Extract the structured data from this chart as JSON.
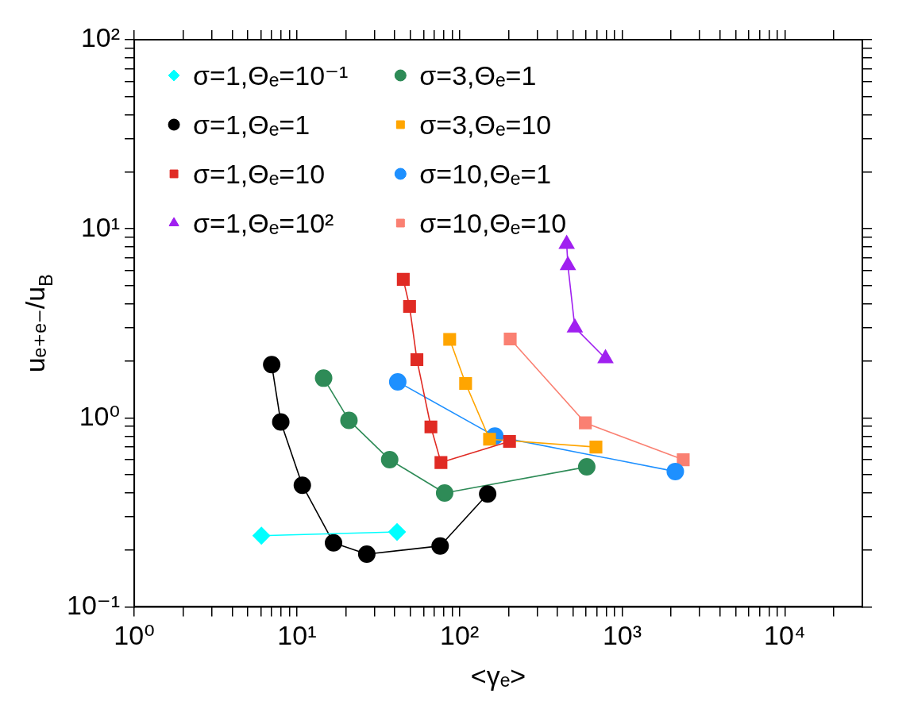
{
  "chart_data": {
    "type": "line",
    "xlabel": "<γₑ>",
    "ylabel": "uₑ₊ₑ₋/u$_{B}$",
    "log": "xy",
    "legend": "top",
    "grid": false,
    "xlim": [
      1,
      30000
    ],
    "xticks": [
      {
        "value": 1,
        "label": "10⁰"
      },
      {
        "value": 2,
        "label": null
      },
      {
        "value": 3,
        "label": null
      },
      {
        "value": 4,
        "label": null
      },
      {
        "value": 5,
        "label": null
      },
      {
        "value": 6,
        "label": null
      },
      {
        "value": 7,
        "label": null
      },
      {
        "value": 8,
        "label": null
      },
      {
        "value": 9,
        "label": null
      },
      {
        "value": 10,
        "label": "10¹"
      },
      {
        "value": 20,
        "label": null
      },
      {
        "value": 30,
        "label": null
      },
      {
        "value": 40,
        "label": null
      },
      {
        "value": 50,
        "label": null
      },
      {
        "value": 60,
        "label": null
      },
      {
        "value": 70,
        "label": null
      },
      {
        "value": 80,
        "label": null
      },
      {
        "value": 90,
        "label": null
      },
      {
        "value": 100,
        "label": "10²"
      },
      {
        "value": 200,
        "label": null
      },
      {
        "value": 300,
        "label": null
      },
      {
        "value": 400,
        "label": null
      },
      {
        "value": 500,
        "label": null
      },
      {
        "value": 600,
        "label": null
      },
      {
        "value": 700,
        "label": null
      },
      {
        "value": 800,
        "label": null
      },
      {
        "value": 900,
        "label": null
      },
      {
        "value": 1000,
        "label": "10³"
      },
      {
        "value": 2000,
        "label": null
      },
      {
        "value": 3000,
        "label": null
      },
      {
        "value": 4000,
        "label": null
      },
      {
        "value": 5000,
        "label": null
      },
      {
        "value": 6000,
        "label": null
      },
      {
        "value": 7000,
        "label": null
      },
      {
        "value": 8000,
        "label": null
      },
      {
        "value": 9000,
        "label": null
      },
      {
        "value": 10000,
        "label": "10⁴"
      },
      {
        "value": 20000,
        "label": null
      }
    ],
    "ylim": [
      0.1,
      100
    ],
    "yticks": [
      {
        "value": 0.1,
        "label": "10⁻¹"
      },
      {
        "value": 0.2,
        "label": null
      },
      {
        "value": 0.3,
        "label": null
      },
      {
        "value": 0.4,
        "label": null
      },
      {
        "value": 0.5,
        "label": null
      },
      {
        "value": 0.6,
        "label": null
      },
      {
        "value": 0.7,
        "label": null
      },
      {
        "value": 0.8,
        "label": null
      },
      {
        "value": 0.9,
        "label": null
      },
      {
        "value": 1,
        "label": "10⁰"
      },
      {
        "value": 2,
        "label": null
      },
      {
        "value": 3,
        "label": null
      },
      {
        "value": 4,
        "label": null
      },
      {
        "value": 5,
        "label": null
      },
      {
        "value": 6,
        "label": null
      },
      {
        "value": 7,
        "label": null
      },
      {
        "value": 8,
        "label": null
      },
      {
        "value": 9,
        "label": null
      },
      {
        "value": 10,
        "label": "10¹"
      },
      {
        "value": 20,
        "label": null
      },
      {
        "value": 30,
        "label": null
      },
      {
        "value": 40,
        "label": null
      },
      {
        "value": 50,
        "label": null
      },
      {
        "value": 60,
        "label": null
      },
      {
        "value": 70,
        "label": null
      },
      {
        "value": 80,
        "label": null
      },
      {
        "value": 90,
        "label": null
      },
      {
        "value": 100,
        "label": "10²"
      }
    ],
    "series": [
      {
        "name": "σ=1,Θₑ=10⁻¹",
        "color": "#00ffff",
        "marker": "diamond",
        "x": [
          6.05,
          41.3
        ],
        "values": [
          0.238,
          0.249
        ]
      },
      {
        "name": "σ=1,Θₑ=1",
        "color": "#000000",
        "marker": "circle",
        "x": [
          7.0,
          7.96,
          10.8,
          16.8,
          26.9,
          76,
          149
        ],
        "values": [
          1.91,
          0.95,
          0.44,
          0.218,
          0.19,
          0.21,
          0.395
        ]
      },
      {
        "name": "σ=1,Θₑ=10",
        "color": "#e02b24",
        "marker": "square",
        "x": [
          45.1,
          49.3,
          54.7,
          66.7,
          76.9,
          203
        ],
        "values": [
          5.4,
          3.88,
          2.03,
          0.895,
          0.58,
          0.75
        ]
      },
      {
        "name": "σ=1,Θₑ=10²",
        "color": "#a020f0",
        "marker": "triangle",
        "x": [
          456,
          464,
          512,
          790
        ],
        "values": [
          8.3,
          6.4,
          3.0,
          2.06
        ]
      },
      {
        "name": "σ=3,Θₑ=1",
        "color": "#2e8b57",
        "marker": "circle",
        "x": [
          14.6,
          20.9,
          37.2,
          81,
          606
        ],
        "values": [
          1.62,
          0.97,
          0.6,
          0.4,
          0.55
        ]
      },
      {
        "name": "σ=3,Θₑ=10",
        "color": "#ffa500",
        "marker": "square",
        "x": [
          87,
          109,
          153,
          690
        ],
        "values": [
          2.6,
          1.52,
          0.77,
          0.7
        ]
      },
      {
        "name": "σ=10,Θₑ=1",
        "color": "#1e90ff",
        "marker": "circle",
        "x": [
          41.7,
          165,
          2123
        ],
        "values": [
          1.55,
          0.8,
          0.52
        ]
      },
      {
        "name": "σ=10,Θₑ=10",
        "color": "#fa8072",
        "marker": "square",
        "x": [
          205,
          594,
          2375
        ],
        "values": [
          2.61,
          0.94,
          0.6
        ]
      }
    ]
  }
}
